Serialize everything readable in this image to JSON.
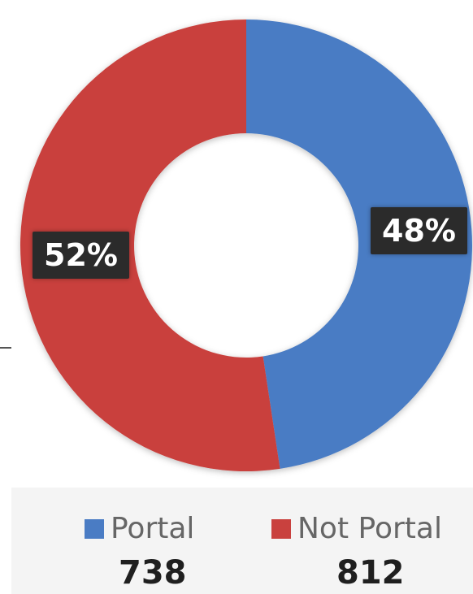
{
  "chart_data": {
    "type": "pie",
    "donut": true,
    "title": "",
    "series": [
      {
        "name": "Portal",
        "value": 738,
        "percent_label": "48%",
        "color": "#4a7cc4"
      },
      {
        "name": "Not Portal",
        "value": 812,
        "percent_label": "52%",
        "color": "#c9413e"
      }
    ],
    "legend_position": "bottom"
  }
}
